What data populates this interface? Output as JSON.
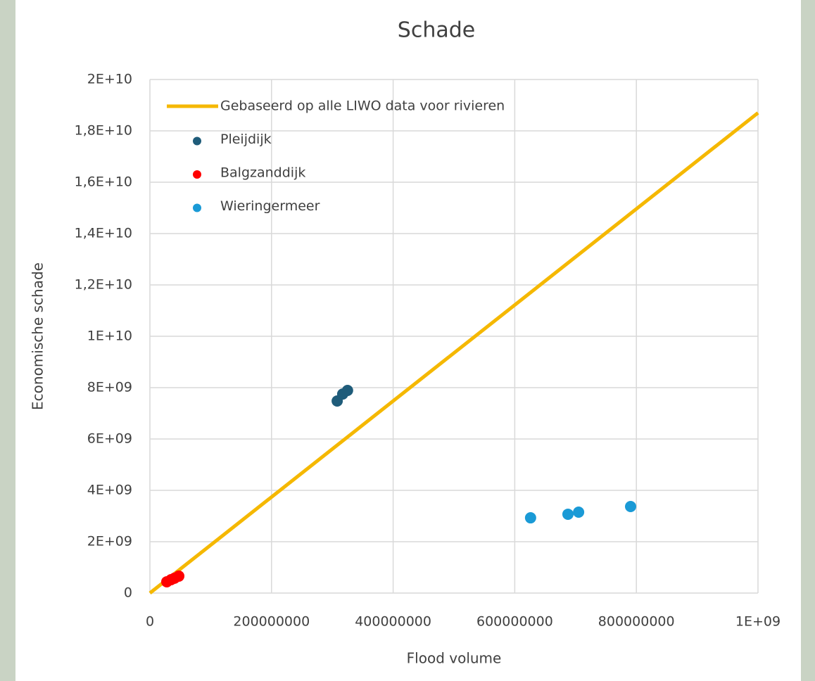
{
  "chart_data": {
    "type": "scatter",
    "title": "Schade",
    "xlabel": "Flood volume",
    "ylabel": "Economische schade",
    "xlim": [
      0,
      1000000000
    ],
    "ylim": [
      0,
      20000000000
    ],
    "xticks": [
      0,
      200000000,
      400000000,
      600000000,
      800000000,
      {
        "value": 1000000000,
        "label": "1E+09"
      }
    ],
    "yticks": [
      0,
      {
        "value": 2000000000,
        "label": "2E+09"
      },
      {
        "value": 4000000000,
        "label": "4E+09"
      },
      {
        "value": 6000000000,
        "label": "6E+09"
      },
      {
        "value": 8000000000,
        "label": "8E+09"
      },
      {
        "value": 10000000000,
        "label": "1E+10"
      },
      {
        "value": 12000000000,
        "label": "1,2E+10"
      },
      {
        "value": 14000000000,
        "label": "1,4E+10"
      },
      {
        "value": 16000000000,
        "label": "1,6E+10"
      },
      {
        "value": 18000000000,
        "label": "1,8E+10"
      },
      {
        "value": 20000000000,
        "label": "2E+10"
      }
    ],
    "grid": true,
    "legend": "top-left",
    "series": [
      {
        "name": "Gebaseerd op alle LIWO data voor rivieren",
        "color": "#f5b800",
        "mode": "line",
        "x": [
          0,
          1000000000
        ],
        "values": [
          0,
          18700000000
        ]
      },
      {
        "name": "Pleijdijk",
        "color": "#1f5c7a",
        "mode": "markers",
        "x": [
          308000000,
          317000000,
          325000000
        ],
        "values": [
          7480000000,
          7750000000,
          7890000000
        ]
      },
      {
        "name": "Balgzanddijk",
        "color": "#ff0000",
        "mode": "markers",
        "x": [
          27800000,
          34700000,
          40500000,
          47500000
        ],
        "values": [
          440000000,
          520000000,
          580000000,
          660000000
        ]
      },
      {
        "name": "Wieringermeer",
        "color": "#1a9ad6",
        "mode": "markers",
        "x": [
          626000000,
          687500000,
          705000000,
          790500000
        ],
        "values": [
          2930000000,
          3070000000,
          3150000000,
          3370000000
        ]
      }
    ]
  }
}
